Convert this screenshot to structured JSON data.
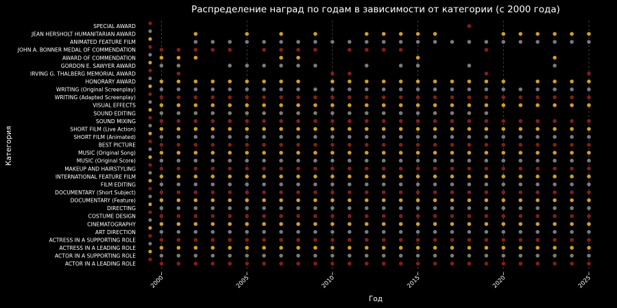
{
  "chart_data": {
    "type": "scatter",
    "title": "Распределение наград по годам в зависимости от категории (с 2000 года)",
    "xlabel": "Год",
    "ylabel": "Категория",
    "xlim": [
      1999.3,
      2025.2
    ],
    "x_ticks": [
      2000,
      2005,
      2010,
      2015,
      2020,
      2025
    ],
    "grid": "vertical dashed",
    "categories_top_to_bottom": [
      "SPECIAL AWARD",
      "JEAN HERSHOLT HUMANITARIAN AWARD",
      "ANIMATED FEATURE FILM",
      "JOHN A. BONNER MEDAL OF COMMENDATION",
      "AWARD OF COMMENDATION",
      "GORDON E. SAWYER AWARD",
      "IRVING G. THALBERG MEMORIAL AWARD",
      "HONORARY AWARD",
      "WRITING (Original Screenplay)",
      "WRITING (Adapted Screenplay)",
      "VISUAL EFFECTS",
      "SOUND EDITING",
      "SOUND MIXING",
      "SHORT FILM (Live Action)",
      "SHORT FILM (Animated)",
      "BEST PICTURE",
      "MUSIC (Original Song)",
      "MUSIC (Original Score)",
      "MAKEUP AND HAIRSTYLING",
      "INTERNATIONAL FEATURE FILM",
      "FILM EDITING",
      "DOCUMENTARY (Short Subject)",
      "DOCUMENTARY (Feature)",
      "DIRECTING",
      "COSTUME DESIGN",
      "CINEMATOGRAPHY",
      "ART DIRECTION",
      "ACTRESS IN A SUPPORTING ROLE",
      "ACTRESS IN A LEADING ROLE",
      "ACTOR IN A SUPPORTING ROLE",
      "ACTOR IN A LEADING ROLE"
    ],
    "colors": {
      "gold": "#d4a017",
      "red": "#8b1a1a",
      "gray": "#7a7a7a",
      "background": "#000000",
      "text": "#ffffff",
      "grid": "#5a5a5a"
    },
    "series": [
      {
        "category": "SPECIAL AWARD",
        "color": "red",
        "years": [
          2018
        ]
      },
      {
        "category": "JEAN HERSHOLT HUMANITARIAN AWARD",
        "color": "gold",
        "years": [
          2002,
          2005,
          2007,
          2009,
          2012,
          2013,
          2014,
          2015,
          2016,
          2020,
          2021,
          2022,
          2023,
          2024,
          2025
        ]
      },
      {
        "category": "ANIMATED FEATURE FILM",
        "color": "gray",
        "years": [
          2002,
          2003,
          2004,
          2005,
          2006,
          2007,
          2008,
          2009,
          2010,
          2011,
          2012,
          2013,
          2014,
          2015,
          2016,
          2017,
          2018,
          2019,
          2020,
          2021,
          2022,
          2023,
          2024,
          2025
        ]
      },
      {
        "category": "JOHN A. BONNER MEDAL OF COMMENDATION",
        "color": "red",
        "years": [
          2000,
          2001,
          2002,
          2003,
          2004,
          2006,
          2007,
          2008,
          2009,
          2011,
          2012,
          2013,
          2014,
          2019
        ]
      },
      {
        "category": "AWARD OF COMMENDATION",
        "color": "gold",
        "years": [
          2000,
          2001,
          2002,
          2007,
          2008,
          2015,
          2023
        ]
      },
      {
        "category": "GORDON E. SAWYER AWARD",
        "color": "gray",
        "years": [
          2000,
          2001,
          2004,
          2005,
          2006,
          2007,
          2008,
          2009,
          2012,
          2014,
          2015,
          2018,
          2023
        ]
      },
      {
        "category": "IRVING G. THALBERG MEMORIAL AWARD",
        "color": "red",
        "years": [
          2001,
          2010,
          2011,
          2019,
          2025
        ]
      },
      {
        "category": "HONORARY AWARD",
        "color": "gold",
        "years": [
          2000,
          2001,
          2002,
          2003,
          2004,
          2005,
          2006,
          2007,
          2008,
          2010,
          2011,
          2012,
          2013,
          2014,
          2015,
          2016,
          2017,
          2018,
          2019,
          2020,
          2022,
          2023,
          2024,
          2025
        ]
      },
      {
        "category": "WRITING (Original Screenplay)",
        "color": "gray",
        "years": [
          2000,
          2001,
          2002,
          2003,
          2004,
          2005,
          2006,
          2007,
          2008,
          2009,
          2010,
          2011,
          2012,
          2013,
          2014,
          2015,
          2016,
          2017,
          2018,
          2019,
          2020,
          2021,
          2022,
          2023,
          2024,
          2025
        ]
      },
      {
        "category": "WRITING (Adapted Screenplay)",
        "color": "red",
        "years": [
          2000,
          2001,
          2002,
          2003,
          2004,
          2005,
          2006,
          2007,
          2008,
          2009,
          2010,
          2011,
          2012,
          2013,
          2014,
          2015,
          2016,
          2017,
          2018,
          2019,
          2020,
          2021,
          2022,
          2023,
          2024,
          2025
        ]
      },
      {
        "category": "VISUAL EFFECTS",
        "color": "gold",
        "years": [
          2000,
          2001,
          2002,
          2003,
          2004,
          2005,
          2006,
          2007,
          2008,
          2009,
          2010,
          2011,
          2012,
          2013,
          2014,
          2015,
          2016,
          2017,
          2018,
          2019,
          2020,
          2021,
          2022,
          2023,
          2024,
          2025
        ]
      },
      {
        "category": "SOUND EDITING",
        "color": "gray",
        "years": [
          2000,
          2001,
          2002,
          2003,
          2004,
          2005,
          2006,
          2007,
          2008,
          2009,
          2010,
          2011,
          2012,
          2013,
          2014,
          2015,
          2016,
          2017,
          2018,
          2019
        ]
      },
      {
        "category": "SOUND MIXING",
        "color": "red",
        "years": [
          2000,
          2001,
          2002,
          2003,
          2004,
          2005,
          2006,
          2007,
          2008,
          2009,
          2010,
          2011,
          2012,
          2013,
          2014,
          2015,
          2016,
          2017,
          2018,
          2019,
          2020,
          2021,
          2022,
          2023,
          2024,
          2025
        ]
      },
      {
        "category": "SHORT FILM (Live Action)",
        "color": "gold",
        "years": [
          2000,
          2001,
          2002,
          2003,
          2004,
          2005,
          2006,
          2007,
          2008,
          2009,
          2010,
          2011,
          2012,
          2013,
          2014,
          2015,
          2016,
          2017,
          2018,
          2019,
          2020,
          2021,
          2022,
          2023,
          2024,
          2025
        ]
      },
      {
        "category": "SHORT FILM (Animated)",
        "color": "gray",
        "years": [
          2000,
          2001,
          2002,
          2003,
          2004,
          2005,
          2006,
          2007,
          2008,
          2009,
          2010,
          2011,
          2012,
          2013,
          2014,
          2015,
          2016,
          2017,
          2018,
          2019,
          2020,
          2021,
          2022,
          2023,
          2024,
          2025
        ]
      },
      {
        "category": "BEST PICTURE",
        "color": "red",
        "years": [
          2000,
          2001,
          2002,
          2003,
          2004,
          2005,
          2006,
          2007,
          2008,
          2009,
          2010,
          2011,
          2012,
          2013,
          2014,
          2015,
          2016,
          2017,
          2018,
          2019,
          2020,
          2021,
          2022,
          2023,
          2024,
          2025
        ]
      },
      {
        "category": "MUSIC (Original Song)",
        "color": "gold",
        "years": [
          2000,
          2001,
          2002,
          2003,
          2004,
          2005,
          2006,
          2007,
          2008,
          2009,
          2010,
          2011,
          2012,
          2013,
          2014,
          2015,
          2016,
          2017,
          2018,
          2019,
          2020,
          2021,
          2022,
          2023,
          2024,
          2025
        ]
      },
      {
        "category": "MUSIC (Original Score)",
        "color": "gray",
        "years": [
          2000,
          2001,
          2002,
          2003,
          2004,
          2005,
          2006,
          2007,
          2008,
          2009,
          2010,
          2011,
          2012,
          2013,
          2014,
          2015,
          2016,
          2017,
          2018,
          2019,
          2020,
          2021,
          2022,
          2023,
          2024,
          2025
        ]
      },
      {
        "category": "MAKEUP AND HAIRSTYLING",
        "color": "red",
        "years": [
          2000,
          2001,
          2002,
          2003,
          2004,
          2005,
          2006,
          2007,
          2008,
          2009,
          2010,
          2011,
          2012,
          2013,
          2014,
          2015,
          2016,
          2017,
          2018,
          2019,
          2020,
          2021,
          2022,
          2023,
          2024,
          2025
        ]
      },
      {
        "category": "INTERNATIONAL FEATURE FILM",
        "color": "gold",
        "years": [
          2000,
          2001,
          2002,
          2003,
          2004,
          2005,
          2006,
          2007,
          2008,
          2009,
          2010,
          2011,
          2012,
          2013,
          2014,
          2015,
          2016,
          2017,
          2018,
          2019,
          2020,
          2021,
          2022,
          2023,
          2024,
          2025
        ]
      },
      {
        "category": "FILM EDITING",
        "color": "gray",
        "years": [
          2000,
          2001,
          2002,
          2003,
          2004,
          2005,
          2006,
          2007,
          2008,
          2009,
          2010,
          2011,
          2012,
          2013,
          2014,
          2015,
          2016,
          2017,
          2018,
          2019,
          2020,
          2021,
          2022,
          2023,
          2024,
          2025
        ]
      },
      {
        "category": "DOCUMENTARY (Short Subject)",
        "color": "red",
        "years": [
          2000,
          2001,
          2002,
          2003,
          2004,
          2005,
          2006,
          2007,
          2008,
          2009,
          2010,
          2011,
          2012,
          2013,
          2014,
          2015,
          2016,
          2017,
          2018,
          2019,
          2020,
          2021,
          2022,
          2023,
          2024,
          2025
        ]
      },
      {
        "category": "DOCUMENTARY (Feature)",
        "color": "gold",
        "years": [
          2000,
          2001,
          2002,
          2003,
          2004,
          2005,
          2006,
          2007,
          2008,
          2009,
          2010,
          2011,
          2012,
          2013,
          2014,
          2015,
          2016,
          2017,
          2018,
          2019,
          2020,
          2021,
          2022,
          2023,
          2024,
          2025
        ]
      },
      {
        "category": "DIRECTING",
        "color": "gray",
        "years": [
          2000,
          2001,
          2002,
          2003,
          2004,
          2005,
          2006,
          2007,
          2008,
          2009,
          2010,
          2011,
          2012,
          2013,
          2014,
          2015,
          2016,
          2017,
          2018,
          2019,
          2020,
          2021,
          2022,
          2023,
          2024,
          2025
        ]
      },
      {
        "category": "COSTUME DESIGN",
        "color": "red",
        "years": [
          2000,
          2001,
          2002,
          2003,
          2004,
          2005,
          2006,
          2007,
          2008,
          2009,
          2010,
          2011,
          2012,
          2013,
          2014,
          2015,
          2016,
          2017,
          2018,
          2019,
          2020,
          2021,
          2022,
          2023,
          2024,
          2025
        ]
      },
      {
        "category": "CINEMATOGRAPHY",
        "color": "gold",
        "years": [
          2000,
          2001,
          2002,
          2003,
          2004,
          2005,
          2006,
          2007,
          2008,
          2009,
          2010,
          2011,
          2012,
          2013,
          2014,
          2015,
          2016,
          2017,
          2018,
          2019,
          2020,
          2021,
          2022,
          2023,
          2024,
          2025
        ]
      },
      {
        "category": "ART DIRECTION",
        "color": "gray",
        "years": [
          2000,
          2001,
          2002,
          2003,
          2004,
          2005,
          2006,
          2007,
          2008,
          2009,
          2010,
          2011,
          2012,
          2013,
          2014,
          2015,
          2016,
          2017,
          2018,
          2019,
          2020,
          2021,
          2022,
          2023,
          2024,
          2025
        ]
      },
      {
        "category": "ACTRESS IN A SUPPORTING ROLE",
        "color": "red",
        "years": [
          2000,
          2001,
          2002,
          2003,
          2004,
          2005,
          2006,
          2007,
          2008,
          2009,
          2010,
          2011,
          2012,
          2013,
          2014,
          2015,
          2016,
          2017,
          2018,
          2019,
          2020,
          2021,
          2022,
          2023,
          2024,
          2025
        ]
      },
      {
        "category": "ACTRESS IN A LEADING ROLE",
        "color": "gold",
        "years": [
          2000,
          2001,
          2002,
          2003,
          2004,
          2005,
          2006,
          2007,
          2008,
          2009,
          2010,
          2011,
          2012,
          2013,
          2014,
          2015,
          2016,
          2017,
          2018,
          2019,
          2020,
          2021,
          2022,
          2023,
          2024,
          2025
        ]
      },
      {
        "category": "ACTOR IN A SUPPORTING ROLE",
        "color": "gray",
        "years": [
          2000,
          2001,
          2002,
          2003,
          2004,
          2005,
          2006,
          2007,
          2008,
          2009,
          2010,
          2011,
          2012,
          2013,
          2014,
          2015,
          2016,
          2017,
          2018,
          2019,
          2020,
          2021,
          2022,
          2023,
          2024,
          2025
        ]
      },
      {
        "category": "ACTOR IN A LEADING ROLE",
        "color": "red",
        "years": [
          2000,
          2001,
          2002,
          2003,
          2004,
          2005,
          2006,
          2007,
          2008,
          2009,
          2010,
          2011,
          2012,
          2013,
          2014,
          2015,
          2016,
          2017,
          2018,
          2019,
          2020,
          2021,
          2022,
          2023,
          2024,
          2025
        ]
      }
    ]
  }
}
